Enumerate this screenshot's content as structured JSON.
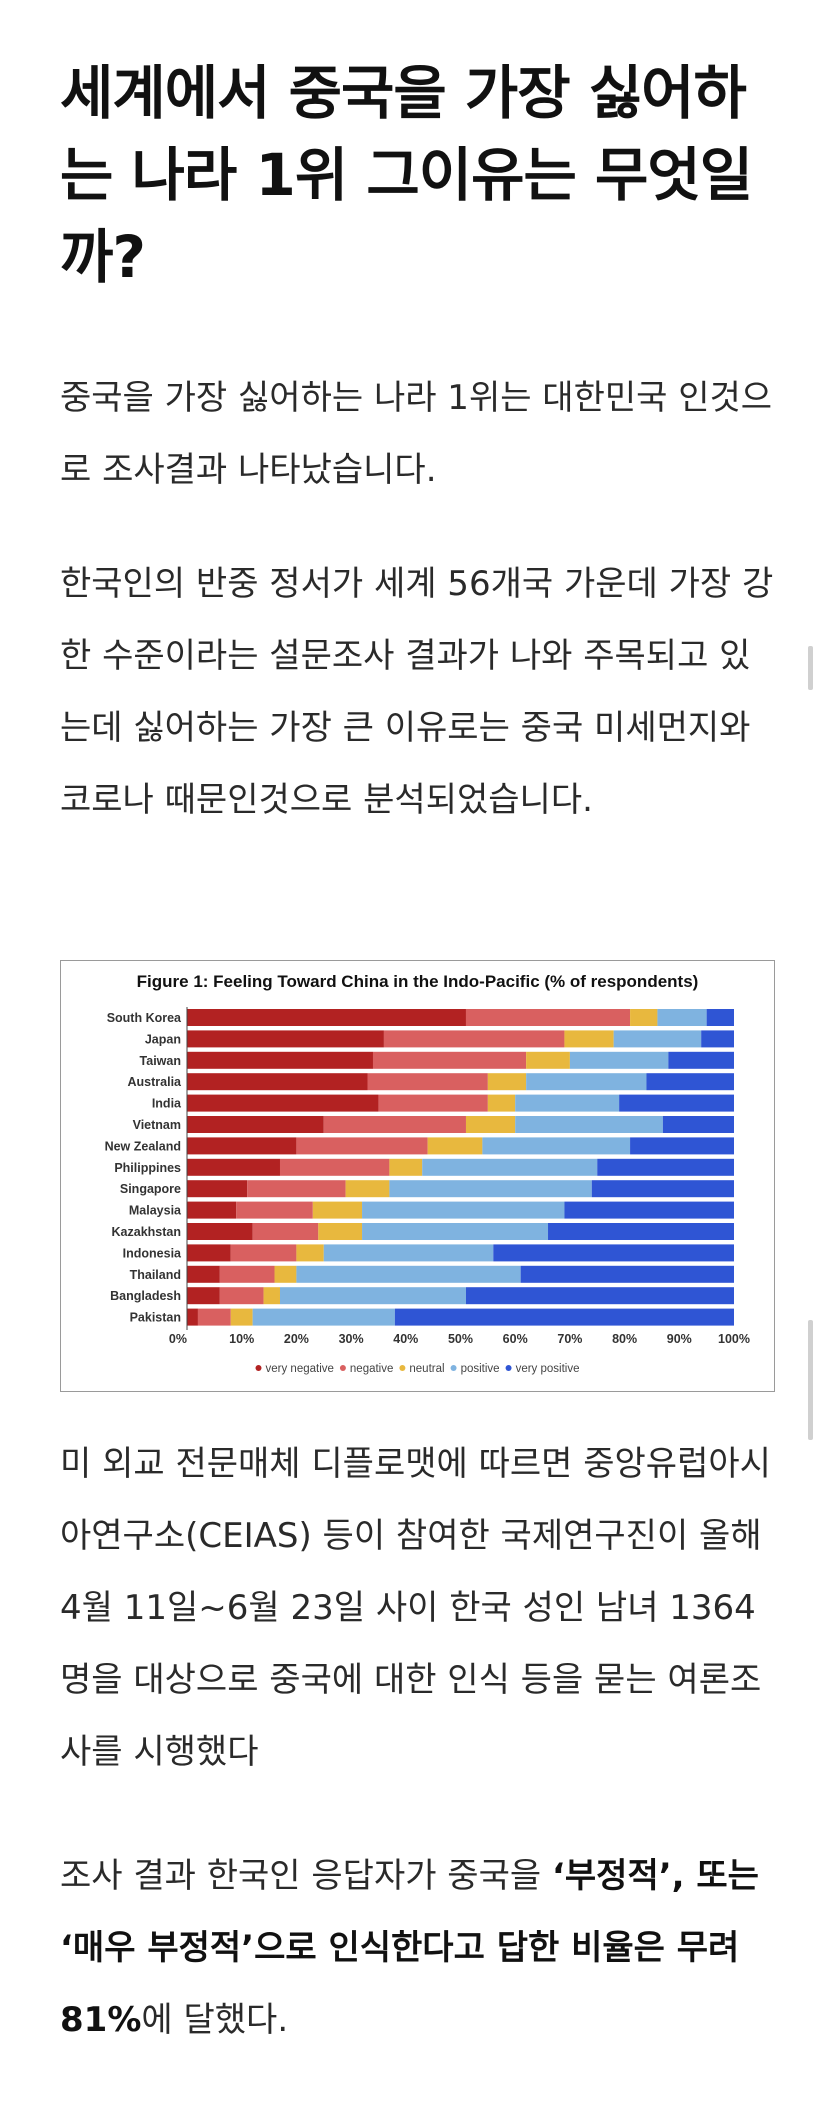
{
  "article": {
    "title": "세계에서 중국을 가장 싫어하는 나라 1위 그이유는 무엇일까?",
    "p1": "중국을 가장 싫어하는 나라 1위는 대한민국 인것으로 조사결과 나타났습니다.",
    "p2": "한국인의 반중 정서가 세계 56개국 가운데 가장 강한 수준이라는 설문조사 결과가 나와 주목되고 있는데 싫어하는 가장 큰 이유로는 중국 미세먼지와 코로나 때문인것으로 분석되었습니다.",
    "p3": "미 외교 전문매체 디플로맷에 따르면 중앙유럽아시아연구소(CEIAS) 등이 참여한 국제연구진이 올해 4월 11일~6월 23일 사이 한국 성인 남녀 1364명을 대상으로 중국에 대한 인식 등을 묻는 여론조사를 시행했다",
    "p4_a": "조사 결과 한국인 응답자가 중국을 ",
    "p4_b": "‘부정적’, 또는 ‘매우 부정적’으로 인식한다고 답한 비율은 무려 81%",
    "p4_c": "에 달했다."
  },
  "chart_data": {
    "type": "bar",
    "orientation": "horizontal",
    "stacked": true,
    "title": "Figure 1: Feeling Toward China in the Indo-Pacific (% of respondents)",
    "categories": [
      "South Korea",
      "Japan",
      "Taiwan",
      "Australia",
      "India",
      "Vietnam",
      "New Zealand",
      "Philippines",
      "Singapore",
      "Malaysia",
      "Kazakhstan",
      "Indonesia",
      "Thailand",
      "Bangladesh",
      "Pakistan"
    ],
    "series": [
      {
        "name": "very negative",
        "color": "#b22222",
        "values": [
          51,
          36,
          34,
          33,
          35,
          25,
          20,
          17,
          11,
          9,
          12,
          8,
          6,
          6,
          2
        ]
      },
      {
        "name": "negative",
        "color": "#d96060",
        "values": [
          30,
          33,
          28,
          22,
          20,
          26,
          24,
          20,
          18,
          14,
          12,
          12,
          10,
          8,
          6
        ]
      },
      {
        "name": "neutral",
        "color": "#e8b83e",
        "values": [
          5,
          9,
          8,
          7,
          5,
          9,
          10,
          6,
          8,
          9,
          8,
          5,
          4,
          3,
          4
        ]
      },
      {
        "name": "positive",
        "color": "#7fb3e0",
        "values": [
          9,
          16,
          18,
          22,
          19,
          27,
          27,
          32,
          37,
          37,
          34,
          31,
          41,
          34,
          26
        ]
      },
      {
        "name": "very positive",
        "color": "#2f55d4",
        "values": [
          5,
          6,
          12,
          16,
          21,
          13,
          19,
          25,
          26,
          31,
          34,
          44,
          39,
          49,
          62
        ]
      }
    ],
    "xlim": [
      0,
      100
    ],
    "xticks": [
      "0%",
      "10%",
      "20%",
      "30%",
      "40%",
      "50%",
      "60%",
      "70%",
      "80%",
      "90%",
      "100%"
    ],
    "legend_position": "bottom",
    "grid": false
  }
}
